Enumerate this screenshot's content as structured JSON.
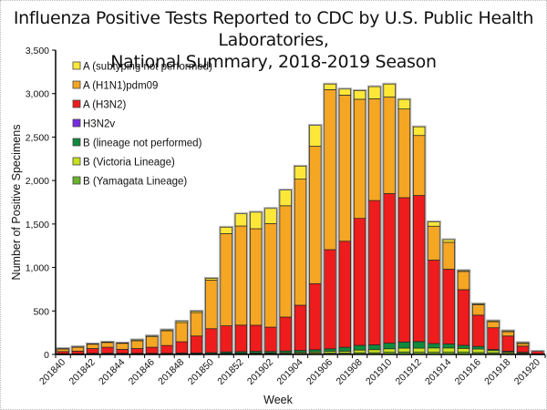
{
  "chart_data": {
    "type": "bar",
    "stacked": true,
    "title": "Influenza Positive Tests Reported to CDC by U.S. Public Health Laboratories, National Summary, 2018-2019 Season",
    "title_lines": [
      "Influenza Positive Tests Reported to CDC by U.S. Public Health Laboratories,",
      "National Summary, 2018-2019 Season"
    ],
    "xlabel": "Week",
    "ylabel": "Number of Positive Specimens",
    "ylim": [
      0,
      3500
    ],
    "yticks": [
      0,
      500,
      1000,
      1500,
      2000,
      2500,
      3000,
      3500
    ],
    "ytick_labels": [
      "0",
      "500",
      "1,000",
      "1,500",
      "2,000",
      "2,500",
      "3,000",
      "3,500"
    ],
    "grid": false,
    "legend_position": "top-left",
    "categories": [
      "201840",
      "201841",
      "201842",
      "201843",
      "201844",
      "201845",
      "201846",
      "201847",
      "201848",
      "201849",
      "201850",
      "201851",
      "201852",
      "201901",
      "201902",
      "201903",
      "201904",
      "201905",
      "201906",
      "201907",
      "201908",
      "201909",
      "201910",
      "201911",
      "201912",
      "201913",
      "201914",
      "201915",
      "201916",
      "201917",
      "201918",
      "201919",
      "201920"
    ],
    "xtick_labels": [
      "201840",
      "",
      "201842",
      "",
      "201844",
      "",
      "201846",
      "",
      "201848",
      "",
      "201850",
      "",
      "201852",
      "",
      "201902",
      "",
      "201904",
      "",
      "201906",
      "",
      "201908",
      "",
      "201910",
      "",
      "201912",
      "",
      "201914",
      "",
      "201916",
      "",
      "201918",
      "",
      "201920"
    ],
    "series": [
      {
        "name": "B (Yamagata Lineage)",
        "color": "#6ab42d",
        "values": [
          2,
          2,
          3,
          3,
          3,
          3,
          3,
          3,
          3,
          4,
          5,
          8,
          8,
          10,
          8,
          10,
          12,
          14,
          15,
          15,
          20,
          20,
          25,
          28,
          25,
          25,
          25,
          25,
          22,
          20,
          12,
          8,
          2
        ]
      },
      {
        "name": "B (Victoria Lineage)",
        "color": "#c8e11e",
        "values": [
          1,
          1,
          2,
          2,
          2,
          2,
          2,
          2,
          3,
          3,
          4,
          6,
          6,
          8,
          8,
          10,
          12,
          15,
          20,
          22,
          30,
          35,
          40,
          45,
          48,
          50,
          50,
          45,
          40,
          25,
          15,
          10,
          2
        ]
      },
      {
        "name": "B (lineage not performed)",
        "color": "#0f8a3c",
        "values": [
          5,
          5,
          8,
          8,
          8,
          8,
          8,
          8,
          10,
          10,
          12,
          15,
          18,
          18,
          18,
          20,
          22,
          25,
          30,
          45,
          55,
          55,
          65,
          70,
          75,
          50,
          45,
          35,
          30,
          12,
          10,
          8,
          2
        ]
      },
      {
        "name": "H3N2v",
        "color": "#7a2ce0",
        "values": [
          0,
          0,
          0,
          0,
          0,
          0,
          0,
          0,
          0,
          0,
          0,
          0,
          0,
          0,
          0,
          0,
          0,
          0,
          0,
          0,
          0,
          0,
          0,
          0,
          0,
          0,
          0,
          0,
          0,
          0,
          0,
          0,
          0
        ]
      },
      {
        "name": "A (H3N2)",
        "color": "#ee1c1c",
        "values": [
          25,
          30,
          55,
          70,
          45,
          55,
          70,
          90,
          130,
          195,
          275,
          300,
          305,
          300,
          280,
          390,
          520,
          760,
          1140,
          1220,
          1460,
          1660,
          1720,
          1660,
          1680,
          960,
          860,
          640,
          360,
          250,
          175,
          70,
          30
        ]
      },
      {
        "name": "A (H1N1)pdm09",
        "color": "#f5a623",
        "values": [
          30,
          45,
          50,
          55,
          70,
          90,
          120,
          170,
          220,
          270,
          560,
          1060,
          1140,
          1110,
          1190,
          1280,
          1450,
          1580,
          1840,
          1680,
          1370,
          1170,
          1110,
          1020,
          690,
          390,
          310,
          210,
          120,
          70,
          50,
          30,
          0
        ]
      },
      {
        "name": "A (subtyping not performed)",
        "color": "#fde83a",
        "values": [
          5,
          5,
          5,
          5,
          5,
          10,
          10,
          10,
          15,
          15,
          20,
          75,
          140,
          190,
          175,
          180,
          150,
          240,
          65,
          70,
          100,
          140,
          150,
          110,
          100,
          50,
          30,
          10,
          10,
          10,
          10,
          10,
          0
        ]
      }
    ]
  },
  "legend_order": [
    {
      "label": "A (subtyping not performed)",
      "color": "#fde83a"
    },
    {
      "label": "A (H1N1)pdm09",
      "color": "#f5a623"
    },
    {
      "label": "A (H3N2)",
      "color": "#ee1c1c"
    },
    {
      "label": "H3N2v",
      "color": "#7a2ce0"
    },
    {
      "label": "B (lineage not performed)",
      "color": "#0f8a3c"
    },
    {
      "label": "B (Victoria Lineage)",
      "color": "#c8e11e"
    },
    {
      "label": "B (Yamagata Lineage)",
      "color": "#6ab42d"
    }
  ]
}
